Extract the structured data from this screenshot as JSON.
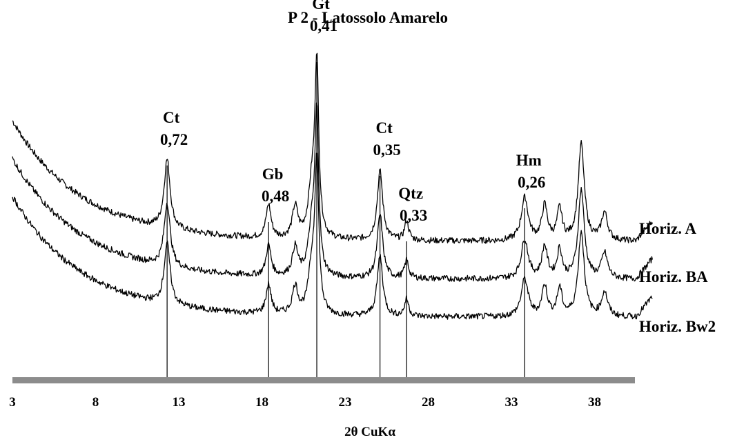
{
  "chart_data": {
    "type": "line",
    "title": "P 2 - Latossolo Amarelo",
    "xlabel": "2θ CuKα",
    "ylabel": "",
    "xlim": [
      3,
      41.5
    ],
    "x_ticks": [
      3,
      8,
      13,
      18,
      23,
      28,
      33,
      38
    ],
    "grid": false,
    "legend": "labels at right end of each trace",
    "series": [
      {
        "name": "Horiz. A"
      },
      {
        "name": "Horiz. BA"
      },
      {
        "name": "Horiz. Bw2"
      }
    ],
    "peaks": [
      {
        "mineral": "Ct",
        "d_spacing": "0,72",
        "two_theta": 12.3
      },
      {
        "mineral": "Gb",
        "d_spacing": "0,48",
        "two_theta": 18.4
      },
      {
        "mineral": "Gt",
        "d_spacing": "0,41",
        "two_theta": 21.3
      },
      {
        "mineral": "Ct",
        "d_spacing": "0,35",
        "two_theta": 25.1
      },
      {
        "mineral": "Qtz",
        "d_spacing": "0,33",
        "two_theta": 26.7
      },
      {
        "mineral": "Hm",
        "d_spacing": "0,26",
        "two_theta": 33.8
      }
    ],
    "minor_peaks_two_theta": [
      20.0,
      35.0,
      35.9,
      37.2,
      38.6
    ]
  }
}
